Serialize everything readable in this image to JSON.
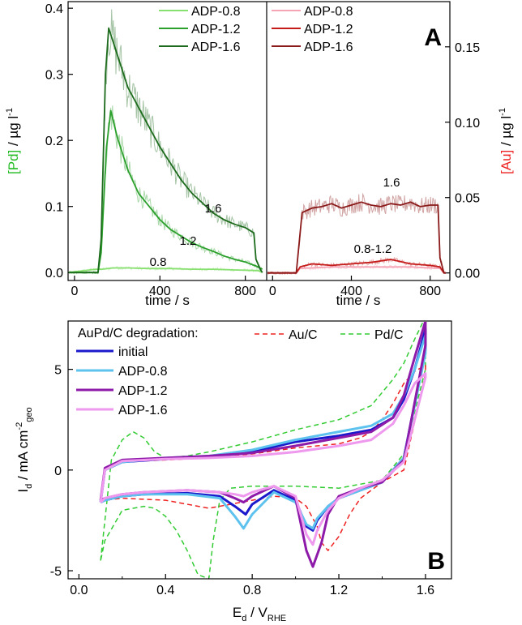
{
  "chart_data": [
    {
      "panel_label": "A",
      "type": "line",
      "xlabel": "time / s",
      "ylabel_pre": "[Pd]",
      "ylabel_post": " / µg l",
      "ylabel_sup": "-1",
      "ylabel_color": "#22bb22",
      "xlim": [
        -30,
        900
      ],
      "ylim": [
        -0.012,
        0.41
      ],
      "xticks": [
        0,
        400,
        800
      ],
      "yticks": [
        0.0,
        0.1,
        0.2,
        0.3,
        0.4
      ],
      "ytick_labels": [
        "0.0",
        "0.1",
        "0.2",
        "0.3",
        "0.4"
      ],
      "noise": true,
      "legend": "top-right",
      "series": [
        {
          "name": "ADP-0.8",
          "annotation": "0.8",
          "color": "#88e070",
          "x": [
            -30,
            100,
            130,
            180,
            250,
            350,
            450,
            550,
            650,
            750,
            860,
            880
          ],
          "y": [
            0.0,
            0.005,
            0.005,
            0.007,
            0.007,
            0.006,
            0.006,
            0.005,
            0.005,
            0.004,
            0.003,
            0.0
          ]
        },
        {
          "name": "ADP-1.2",
          "annotation": "1.2",
          "color": "#2ca02c",
          "x": [
            -30,
            110,
            125,
            150,
            170,
            200,
            250,
            300,
            350,
            400,
            450,
            500,
            550,
            600,
            650,
            700,
            750,
            800,
            850,
            880
          ],
          "y": [
            0.0,
            0.0,
            0.03,
            0.19,
            0.245,
            0.205,
            0.155,
            0.12,
            0.1,
            0.08,
            0.065,
            0.055,
            0.045,
            0.038,
            0.032,
            0.025,
            0.02,
            0.016,
            0.01,
            0.005
          ]
        },
        {
          "name": "ADP-1.6",
          "annotation": "1.6",
          "color": "#1d6b1d",
          "x": [
            -30,
            110,
            125,
            145,
            160,
            200,
            250,
            300,
            350,
            400,
            450,
            500,
            550,
            600,
            650,
            700,
            750,
            800,
            840,
            850,
            870,
            880
          ],
          "y": [
            0.0,
            0.0,
            0.05,
            0.3,
            0.37,
            0.33,
            0.28,
            0.25,
            0.22,
            0.19,
            0.165,
            0.14,
            0.12,
            0.105,
            0.09,
            0.08,
            0.073,
            0.068,
            0.06,
            0.02,
            0.005,
            0.0
          ]
        }
      ]
    },
    {
      "type": "line",
      "xlabel": "time / s",
      "ylabel_pre": "[Au]",
      "ylabel_post": " / µg l",
      "ylabel_sup": "-1",
      "ylabel_color": "#ee2222",
      "xlim": [
        -30,
        900
      ],
      "ylim": [
        -0.005,
        0.18
      ],
      "xticks": [
        0,
        400,
        800
      ],
      "yticks": [
        0.0,
        0.05,
        0.1,
        0.15
      ],
      "ytick_labels": [
        "0.00",
        "0.05",
        "0.10",
        "0.15"
      ],
      "noise": true,
      "legend": "top-left",
      "series": [
        {
          "name": "ADP-0.8",
          "annotation": "",
          "color": "#f4a4b4",
          "x": [
            -30,
            120,
            140,
            300,
            500,
            700,
            850,
            870,
            880
          ],
          "y": [
            0.0,
            0.0,
            0.003,
            0.004,
            0.004,
            0.004,
            0.003,
            0.0,
            0.0
          ]
        },
        {
          "name": "ADP-1.2",
          "annotation": "0.8-1.2",
          "color": "#c41b1b",
          "x": [
            -30,
            120,
            140,
            200,
            300,
            400,
            500,
            600,
            700,
            800,
            850,
            870,
            880
          ],
          "y": [
            0.0,
            0.0,
            0.004,
            0.006,
            0.005,
            0.006,
            0.007,
            0.009,
            0.006,
            0.005,
            0.004,
            0.0,
            0.0
          ]
        },
        {
          "name": "ADP-1.6",
          "annotation": "1.6",
          "color": "#8b1a1a",
          "x": [
            -30,
            120,
            150,
            200,
            250,
            300,
            350,
            400,
            450,
            500,
            550,
            600,
            650,
            700,
            750,
            800,
            840,
            850,
            870,
            880
          ],
          "y": [
            0.0,
            0.0,
            0.04,
            0.043,
            0.044,
            0.046,
            0.043,
            0.045,
            0.047,
            0.045,
            0.044,
            0.046,
            0.045,
            0.047,
            0.044,
            0.045,
            0.045,
            0.01,
            0.0,
            0.0
          ]
        }
      ]
    },
    {
      "panel_label": "B",
      "type": "line",
      "xlabel_main": "E",
      "xlabel_sub": "d",
      "xlabel_mid": " / V",
      "xlabel_sub2": "RHE",
      "ylabel_main": "I",
      "ylabel_sub": "d",
      "ylabel_mid": " / mA cm",
      "ylabel_sup": "-2",
      "ylabel_sub2": "geo",
      "xlim": [
        -0.05,
        1.72
      ],
      "ylim": [
        -5.4,
        7.4
      ],
      "xticks": [
        0.0,
        0.4,
        0.8,
        1.2,
        1.6
      ],
      "xtick_labels": [
        "0.0",
        "0.4",
        "0.8",
        "1.2",
        "1.6"
      ],
      "yticks": [
        -5,
        0,
        5
      ],
      "ytick_labels": [
        "-5",
        "0",
        "5"
      ],
      "legend_title": "AuPd/C degradation:",
      "legend": "top-left",
      "series": [
        {
          "name": "initial",
          "color": "#1a1acc",
          "width": 3,
          "dash": false,
          "x": [
            0.1,
            0.12,
            0.2,
            0.4,
            0.6,
            0.8,
            1.0,
            1.2,
            1.35,
            1.45,
            1.5,
            1.55,
            1.6,
            1.6,
            1.5,
            1.4,
            1.3,
            1.2,
            1.15,
            1.1,
            1.08,
            1.05,
            1.0,
            0.9,
            0.8,
            0.77,
            0.72,
            0.65,
            0.5,
            0.3,
            0.2,
            0.12,
            0.1,
            0.1
          ],
          "y": [
            -1.6,
            0.0,
            0.4,
            0.55,
            0.65,
            0.9,
            1.4,
            1.7,
            2.0,
            2.6,
            3.5,
            5.0,
            7.0,
            6.0,
            0.6,
            -0.6,
            -1.0,
            -1.4,
            -1.8,
            -2.5,
            -3.0,
            -2.8,
            -1.5,
            -1.0,
            -1.7,
            -2.2,
            -1.8,
            -1.3,
            -1.15,
            -1.2,
            -1.3,
            -1.5,
            -1.6,
            -1.6
          ]
        },
        {
          "name": "ADP-0.8",
          "color": "#5ec2ee",
          "width": 3,
          "dash": false,
          "x": [
            0.1,
            0.12,
            0.2,
            0.4,
            0.6,
            0.8,
            1.0,
            1.2,
            1.35,
            1.45,
            1.5,
            1.55,
            1.6,
            1.6,
            1.5,
            1.4,
            1.3,
            1.2,
            1.15,
            1.1,
            1.08,
            1.05,
            1.0,
            0.9,
            0.8,
            0.76,
            0.72,
            0.65,
            0.5,
            0.3,
            0.2,
            0.12,
            0.1,
            0.1
          ],
          "y": [
            -1.6,
            0.0,
            0.4,
            0.6,
            0.7,
            1.0,
            1.5,
            1.9,
            2.2,
            2.8,
            3.7,
            5.0,
            6.7,
            5.8,
            0.6,
            -0.6,
            -1.0,
            -1.4,
            -1.8,
            -2.4,
            -2.9,
            -2.7,
            -1.6,
            -1.1,
            -2.2,
            -2.9,
            -2.3,
            -1.4,
            -1.2,
            -1.2,
            -1.3,
            -1.5,
            -1.6,
            -1.6
          ]
        },
        {
          "name": "ADP-1.2",
          "color": "#8d1aa8",
          "width": 3,
          "dash": false,
          "x": [
            0.1,
            0.12,
            0.2,
            0.4,
            0.6,
            0.8,
            1.0,
            1.2,
            1.35,
            1.45,
            1.5,
            1.55,
            1.6,
            1.6,
            1.5,
            1.4,
            1.3,
            1.2,
            1.15,
            1.12,
            1.08,
            1.05,
            1.0,
            0.9,
            0.8,
            0.76,
            0.72,
            0.65,
            0.5,
            0.3,
            0.2,
            0.12,
            0.1,
            0.1
          ],
          "y": [
            -1.5,
            0.1,
            0.5,
            0.6,
            0.7,
            0.85,
            1.2,
            1.6,
            1.9,
            2.6,
            3.7,
            5.6,
            7.4,
            6.2,
            0.5,
            -0.6,
            -0.9,
            -1.3,
            -2.2,
            -3.6,
            -4.8,
            -4.0,
            -1.4,
            -0.8,
            -1.3,
            -1.6,
            -1.4,
            -1.1,
            -1.0,
            -1.1,
            -1.2,
            -1.4,
            -1.5,
            -1.5
          ]
        },
        {
          "name": "ADP-1.6",
          "color": "#ee99ee",
          "width": 3,
          "dash": false,
          "x": [
            0.1,
            0.12,
            0.2,
            0.4,
            0.6,
            0.8,
            1.0,
            1.2,
            1.35,
            1.45,
            1.5,
            1.55,
            1.6,
            1.6,
            1.5,
            1.4,
            1.3,
            1.2,
            1.15,
            1.1,
            1.08,
            1.05,
            1.0,
            0.9,
            0.8,
            0.76,
            0.72,
            0.65,
            0.5,
            0.3,
            0.2,
            0.12,
            0.1,
            0.1
          ],
          "y": [
            -1.6,
            0.0,
            0.45,
            0.55,
            0.6,
            0.7,
            0.9,
            1.2,
            1.5,
            2.3,
            3.2,
            4.3,
            4.8,
            4.6,
            0.4,
            -0.5,
            -0.9,
            -1.4,
            -2.0,
            -3.0,
            -3.7,
            -3.2,
            -1.3,
            -0.8,
            -1.1,
            -1.3,
            -1.2,
            -1.1,
            -1.0,
            -1.1,
            -1.2,
            -1.4,
            -1.6,
            -1.6
          ]
        },
        {
          "name": "Au/C",
          "color": "#ee2222",
          "width": 1.5,
          "dash": true,
          "x": [
            0.1,
            0.12,
            0.2,
            0.4,
            0.6,
            0.8,
            1.0,
            1.2,
            1.3,
            1.35,
            1.4,
            1.45,
            1.5,
            1.55,
            1.6,
            1.6,
            1.5,
            1.4,
            1.3,
            1.25,
            1.2,
            1.15,
            1.12,
            1.1,
            1.05,
            1.0,
            0.9,
            0.8,
            0.6,
            0.4,
            0.2,
            0.12,
            0.1,
            0.1
          ],
          "y": [
            -1.5,
            0.0,
            0.4,
            0.5,
            0.6,
            0.8,
            1.1,
            1.3,
            1.6,
            1.9,
            2.5,
            3.3,
            4.3,
            4.9,
            5.2,
            4.8,
            0.0,
            -0.6,
            -1.4,
            -2.2,
            -3.3,
            -4.0,
            -3.6,
            -2.8,
            -1.8,
            -1.4,
            -1.3,
            -1.5,
            -1.9,
            -1.5,
            -1.4,
            -1.5,
            -1.5,
            -1.5
          ]
        },
        {
          "name": "Pd/C",
          "color": "#33cc33",
          "width": 1.5,
          "dash": true,
          "x": [
            0.1,
            0.15,
            0.2,
            0.25,
            0.3,
            0.35,
            0.4,
            0.5,
            0.6,
            0.8,
            1.0,
            1.2,
            1.35,
            1.45,
            1.5,
            1.55,
            1.6,
            1.6,
            1.5,
            1.4,
            1.2,
            1.0,
            0.8,
            0.7,
            0.65,
            0.62,
            0.6,
            0.55,
            0.5,
            0.45,
            0.4,
            0.35,
            0.3,
            0.2,
            0.12,
            0.1
          ],
          "y": [
            -4.5,
            0.5,
            1.5,
            1.9,
            1.6,
            0.9,
            0.6,
            0.7,
            0.9,
            1.4,
            2.0,
            2.5,
            3.2,
            4.5,
            5.3,
            6.5,
            7.6,
            5.0,
            0.8,
            -0.5,
            -0.9,
            -0.8,
            -0.8,
            -0.9,
            -1.5,
            -3.5,
            -5.4,
            -5.2,
            -4.0,
            -3.0,
            -2.3,
            -1.9,
            -1.8,
            -2.0,
            -3.5,
            -4.5
          ]
        }
      ]
    }
  ]
}
